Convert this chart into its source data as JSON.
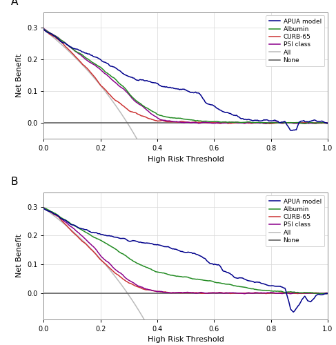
{
  "title_A": "A",
  "title_B": "B",
  "xlabel": "High Risk Threshold",
  "ylabel": "Net Benefit",
  "xlim": [
    0.0,
    1.0
  ],
  "ylim_A": [
    -0.05,
    0.35
  ],
  "ylim_B": [
    -0.09,
    0.35
  ],
  "yticks": [
    0.0,
    0.1,
    0.2,
    0.3
  ],
  "xticks": [
    0.0,
    0.2,
    0.4,
    0.6,
    0.8,
    1.0
  ],
  "colors": {
    "APUA": "#00008B",
    "Albumin": "#228B22",
    "CURB65": "#CC3333",
    "PSI": "#8B008B",
    "All": "#BBBBBB",
    "None": "#555555"
  },
  "legend_labels": [
    "APUA model",
    "Albumin",
    "CURB-65",
    "PSI class",
    "All",
    "None"
  ],
  "background_color": "#ffffff"
}
